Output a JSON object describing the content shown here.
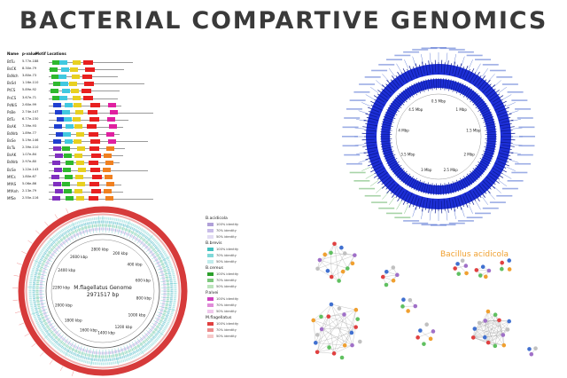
{
  "title": "BACTERIAL COMPARTIVE GENOMICS",
  "motif_table": {
    "headers": [
      "Name",
      "p-value",
      "Motif Locations"
    ],
    "rows": [
      {
        "name": "BtTu",
        "pval": "5.77e-188"
      },
      {
        "name": "BsCK",
        "pval": "8.30e-79"
      },
      {
        "name": "BsNch",
        "pval": "3.80e-73"
      },
      {
        "name": "BsSd",
        "pval": "1.16e-110"
      },
      {
        "name": "PtCS",
        "pval": "5.89e-92"
      },
      {
        "name": "PnCS",
        "pval": "3.67e-71"
      },
      {
        "name": "PsNiS",
        "pval": "2.60e-99"
      },
      {
        "name": "PsBe",
        "pval": "2.74e-147"
      },
      {
        "name": "BtTu",
        "pval": "6.77e-150"
      },
      {
        "name": "BsAK",
        "pval": "7.39e-93"
      },
      {
        "name": "BsNrb",
        "pval": "1.89e-77"
      },
      {
        "name": "BsSe",
        "pval": "5.19e-146"
      },
      {
        "name": "BcTu",
        "pval": "2.39e-110"
      },
      {
        "name": "BsAK",
        "pval": "1.07e-84"
      },
      {
        "name": "BsNrb",
        "pval": "2.97e-80"
      },
      {
        "name": "BcSe",
        "pval": "1.22e-143"
      },
      {
        "name": "MfCs",
        "pval": "1.80e-67"
      },
      {
        "name": "MfAS",
        "pval": "5.06e-86"
      },
      {
        "name": "MfAnh",
        "pval": "2.13e-79"
      },
      {
        "name": "MfSe",
        "pval": "2.55e-116"
      }
    ]
  },
  "genome_map": {
    "organism": "M.flagellatus Genome",
    "length": "2971517 bp",
    "ticks": [
      "2800 kbp",
      "200 kbp",
      "400 kbp",
      "600 kbp",
      "800 kbp",
      "1000 kbp",
      "1200 kbp",
      "1400 kbp",
      "1600 kbp",
      "1800 kbp",
      "2000 kbp",
      "2200 kbp",
      "2400 kbp",
      "2600 kbp"
    ]
  },
  "legend": [
    {
      "name": "B.acidicola",
      "colors": [
        "#b0a0d8",
        "#c8bce8",
        "#e2dcf4"
      ]
    },
    {
      "name": "B.brevis",
      "colors": [
        "#40c0c0",
        "#80d8d8",
        "#c0ecec"
      ]
    },
    {
      "name": "B.cereus",
      "colors": [
        "#2ca02c",
        "#7cc87c",
        "#bce4bc"
      ]
    },
    {
      "name": "P.alvei",
      "colors": [
        "#d040c0",
        "#e08cd8",
        "#f0c8ec"
      ]
    },
    {
      "name": "M.flagellatus",
      "colors": [
        "#e04040",
        "#ec8c8c",
        "#f6c8c8"
      ]
    }
  ],
  "legend_levels": [
    "100% identity",
    "70% identity",
    "50% identity"
  ],
  "right_map": {
    "ticks": [
      "0.5 Mbp",
      "1 Mbp",
      "1.5 Mbp",
      "2 Mbp",
      "2.5 Mbp",
      "3 Mbp",
      "3.5 Mbp",
      "4 Mbp",
      "4.5 Mbp"
    ]
  },
  "network_label": "Bacillus acidicola",
  "colors": {
    "ring_red": "#d63a3a",
    "ring_blue": "#1d2fd6",
    "title_gray": "#3a3a3a",
    "network_label": "#f0a030"
  }
}
